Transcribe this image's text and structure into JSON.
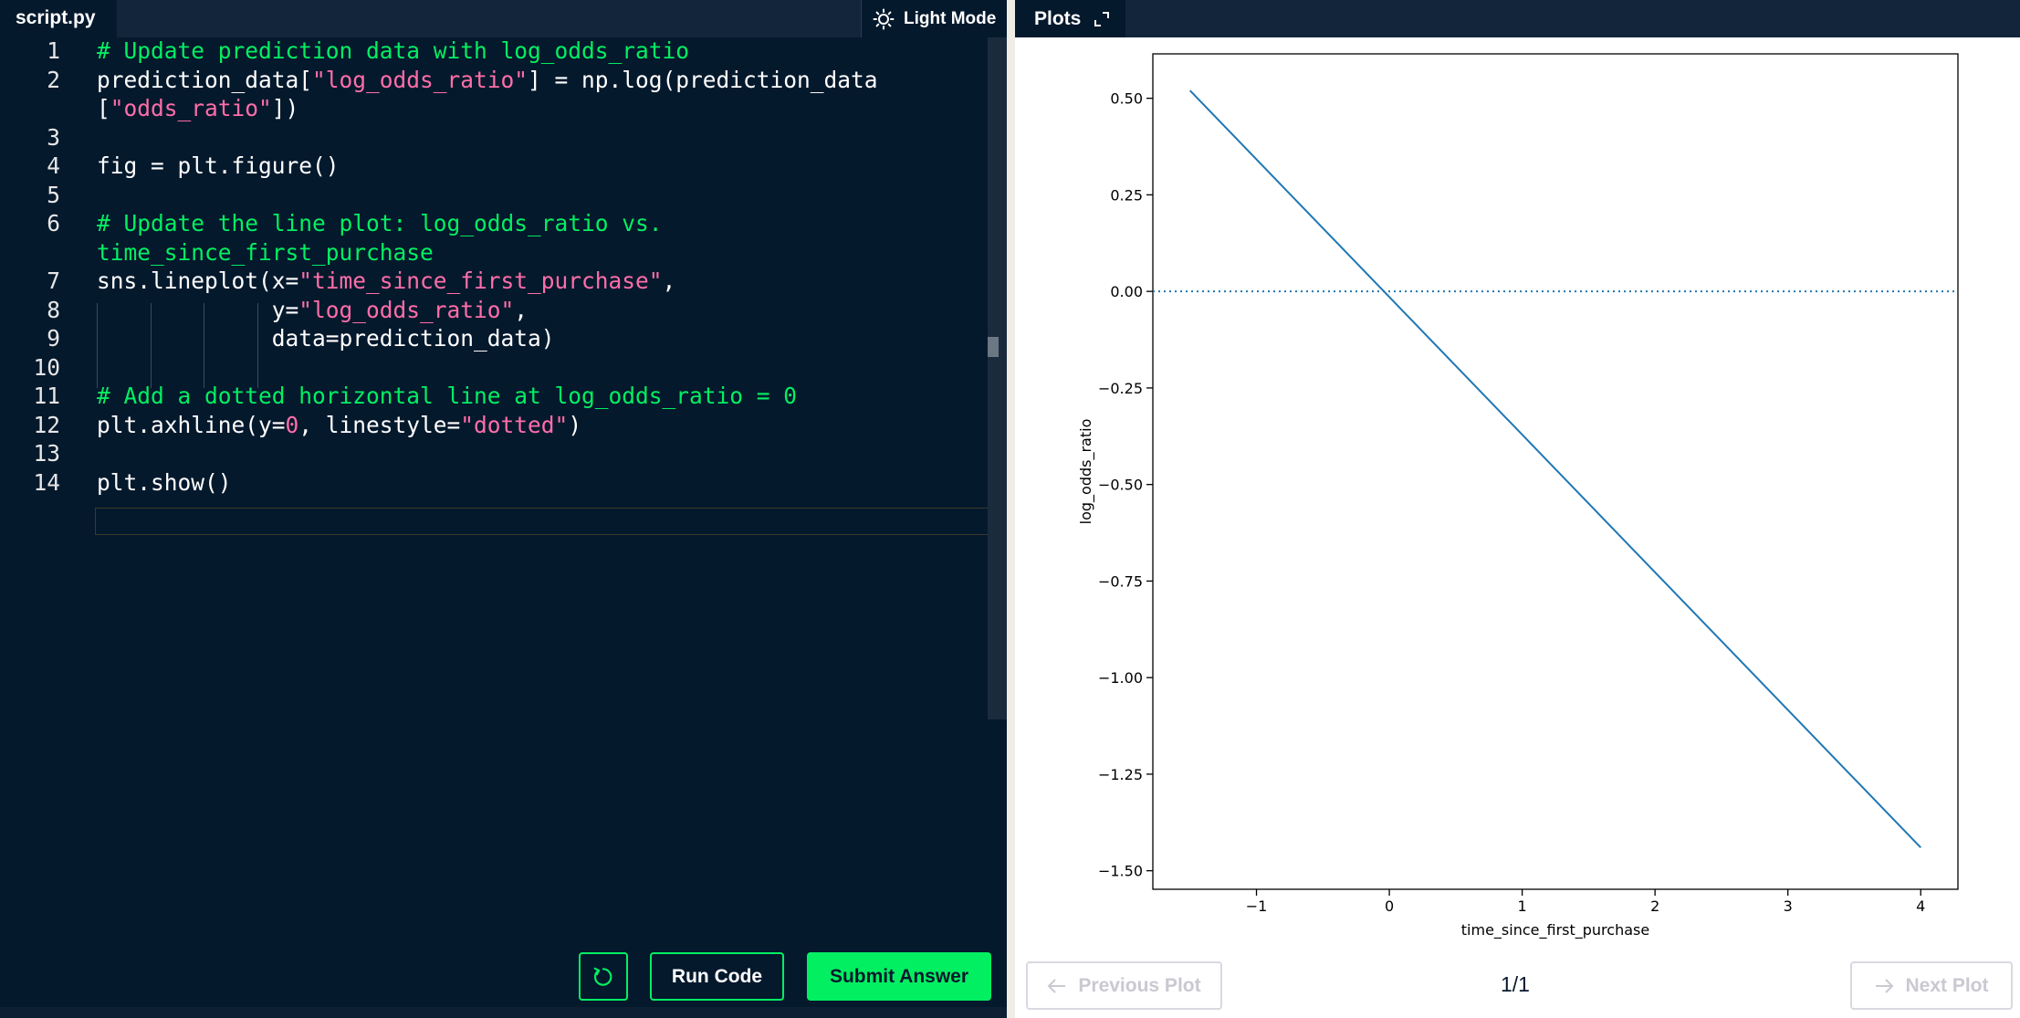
{
  "editor": {
    "file_tab": "script.py",
    "theme_toggle_label": "Light Mode",
    "lines": [
      {
        "num": "1",
        "segments": [
          {
            "t": "# Update prediction data with log_odds_ratio",
            "c": "comment"
          }
        ]
      },
      {
        "num": "2",
        "segments": [
          {
            "t": "prediction_data[",
            "c": "plain"
          },
          {
            "t": "\"log_odds_ratio\"",
            "c": "string"
          },
          {
            "t": "] = np.log(prediction_data",
            "c": "plain"
          }
        ]
      },
      {
        "num": "",
        "segments": [
          {
            "t": "[",
            "c": "plain"
          },
          {
            "t": "\"odds_ratio\"",
            "c": "string"
          },
          {
            "t": "])",
            "c": "plain"
          }
        ]
      },
      {
        "num": "3",
        "segments": []
      },
      {
        "num": "4",
        "segments": [
          {
            "t": "fig = plt.figure()",
            "c": "plain"
          }
        ]
      },
      {
        "num": "5",
        "segments": []
      },
      {
        "num": "6",
        "segments": [
          {
            "t": "# Update the line plot: log_odds_ratio vs.",
            "c": "comment"
          }
        ]
      },
      {
        "num": "",
        "segments": [
          {
            "t": "time_since_first_purchase",
            "c": "comment"
          }
        ]
      },
      {
        "num": "7",
        "segments": [
          {
            "t": "sns.lineplot(x=",
            "c": "plain"
          },
          {
            "t": "\"time_since_first_purchase\"",
            "c": "string"
          },
          {
            "t": ",",
            "c": "plain"
          }
        ]
      },
      {
        "num": "8",
        "segments": [
          {
            "t": "             y=",
            "c": "plain"
          },
          {
            "t": "\"log_odds_ratio\"",
            "c": "string"
          },
          {
            "t": ",",
            "c": "plain"
          }
        ]
      },
      {
        "num": "9",
        "segments": [
          {
            "t": "             data=prediction_data)",
            "c": "plain"
          }
        ]
      },
      {
        "num": "10",
        "segments": []
      },
      {
        "num": "11",
        "segments": [
          {
            "t": "# Add a dotted horizontal line at log_odds_ratio = 0",
            "c": "comment"
          }
        ]
      },
      {
        "num": "12",
        "segments": [
          {
            "t": "plt.axhline(y=",
            "c": "plain"
          },
          {
            "t": "0",
            "c": "string"
          },
          {
            "t": ", linestyle=",
            "c": "plain"
          },
          {
            "t": "\"dotted\"",
            "c": "string"
          },
          {
            "t": ")",
            "c": "plain"
          }
        ]
      },
      {
        "num": "13",
        "segments": []
      },
      {
        "num": "14",
        "segments": [
          {
            "t": "plt.show()",
            "c": "plain"
          }
        ]
      }
    ],
    "buttons": {
      "run_code": "Run Code",
      "submit_answer": "Submit Answer"
    },
    "colors": {
      "comment": "#03ef62",
      "string": "#ff6ea9",
      "plain": "#ffffff",
      "accent": "#03ef62",
      "background": "#05192d"
    }
  },
  "plots": {
    "tab_label": "Plots",
    "previous_label": "Previous Plot",
    "next_label": "Next Plot",
    "counter": "1/1"
  },
  "chart_data": {
    "type": "line",
    "title": "",
    "xlabel": "time_since_first_purchase",
    "ylabel": "log_odds_ratio",
    "xlim": [
      -1.78,
      4.28
    ],
    "ylim": [
      -1.548,
      0.615
    ],
    "xticks": [
      -1,
      0,
      1,
      2,
      3,
      4
    ],
    "xtick_labels": [
      "−1",
      "0",
      "1",
      "2",
      "3",
      "4"
    ],
    "yticks": [
      0.5,
      0.25,
      0.0,
      -0.25,
      -0.5,
      -0.75,
      -1.0,
      -1.25,
      -1.5
    ],
    "ytick_labels": [
      "0.50",
      "0.25",
      "0.00",
      "−0.25",
      "−0.50",
      "−0.75",
      "−1.00",
      "−1.25",
      "−1.50"
    ],
    "series": [
      {
        "x": [
          -1.5,
          4.0
        ],
        "y": [
          0.52,
          -1.44
        ],
        "color": "#1f77b4"
      }
    ],
    "hline": {
      "y": 0,
      "linestyle": "dotted",
      "color": "#1f77b4"
    },
    "grid": false
  }
}
